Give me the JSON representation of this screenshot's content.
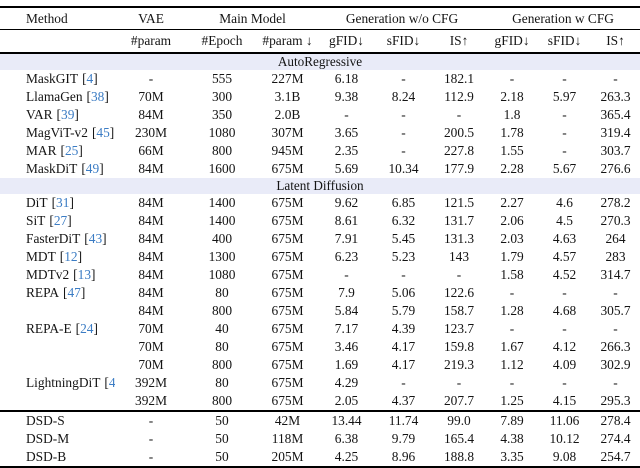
{
  "colors": {
    "citation": "#3b7cc4",
    "band_bg": "#e9ebf8"
  },
  "punctuation": {
    "open_bracket": "[",
    "close_bracket": "]"
  },
  "table": {
    "header_groups": [
      {
        "label": "Method",
        "colspan": 1
      },
      {
        "label": "VAE",
        "colspan": 1
      },
      {
        "label": "Main Model",
        "colspan": 2
      },
      {
        "label": "Generation w/o CFG",
        "colspan": 3
      },
      {
        "label": "Generation w CFG",
        "colspan": 3
      }
    ],
    "subheaders": [
      "",
      "#param",
      "#Epoch",
      "#param ↓",
      "gFID↓",
      "sFID↓",
      "IS↑",
      "gFID↓",
      "sFID↓",
      "IS↑"
    ],
    "sections": [
      {
        "label": "AutoRegressive",
        "rows": [
          {
            "method": "MaskGIT",
            "cite": "4",
            "values": [
              "-",
              "555",
              "227M",
              "6.18",
              "-",
              "182.1",
              "-",
              "-",
              "-"
            ]
          },
          {
            "method": "LlamaGen",
            "cite": "38",
            "values": [
              "70M",
              "300",
              "3.1B",
              "9.38",
              "8.24",
              "112.9",
              "2.18",
              "5.97",
              "263.3"
            ]
          },
          {
            "method": "VAR",
            "cite": "39",
            "values": [
              "84M",
              "350",
              "2.0B",
              "-",
              "-",
              "-",
              "1.8",
              "-",
              "365.4"
            ]
          },
          {
            "method": "MagViT-v2",
            "cite": "45",
            "values": [
              "230M",
              "1080",
              "307M",
              "3.65",
              "-",
              "200.5",
              "1.78",
              "-",
              "319.4"
            ]
          },
          {
            "method": "MAR",
            "cite": "25",
            "values": [
              "66M",
              "800",
              "945M",
              "2.35",
              "-",
              "227.8",
              "1.55",
              "-",
              "303.7"
            ]
          },
          {
            "method": "MaskDiT",
            "cite": "49",
            "values": [
              "84M",
              "1600",
              "675M",
              "5.69",
              "10.34",
              "177.9",
              "2.28",
              "5.67",
              "276.6"
            ]
          }
        ]
      },
      {
        "label": "Latent Diffusion",
        "rows": [
          {
            "method": "DiT",
            "cite": "31",
            "values": [
              "84M",
              "1400",
              "675M",
              "9.62",
              "6.85",
              "121.5",
              "2.27",
              "4.6",
              "278.2"
            ]
          },
          {
            "method": "SiT",
            "cite": "27",
            "values": [
              "84M",
              "1400",
              "675M",
              "8.61",
              "6.32",
              "131.7",
              "2.06",
              "4.5",
              "270.3"
            ]
          },
          {
            "method": "FasterDiT",
            "cite": "43",
            "values": [
              "84M",
              "400",
              "675M",
              "7.91",
              "5.45",
              "131.3",
              "2.03",
              "4.63",
              "264"
            ]
          },
          {
            "method": "MDT",
            "cite": "12",
            "values": [
              "84M",
              "1300",
              "675M",
              "6.23",
              "5.23",
              "143",
              "1.79",
              "4.57",
              "283"
            ]
          },
          {
            "method": "MDTv2",
            "cite": "13",
            "values": [
              "84M",
              "1080",
              "675M",
              "-",
              "-",
              "-",
              "1.58",
              "4.52",
              "314.7"
            ]
          },
          {
            "method": "REPA",
            "cite": "47",
            "values": [
              "84M",
              "80",
              "675M",
              "7.9",
              "5.06",
              "122.6",
              "-",
              "-",
              "-"
            ]
          },
          {
            "method": "",
            "cite": "",
            "values": [
              "84M",
              "800",
              "675M",
              "5.84",
              "5.79",
              "158.7",
              "1.28",
              "4.68",
              "305.7"
            ]
          },
          {
            "method": "REPA-E",
            "cite": "24",
            "values": [
              "70M",
              "40",
              "675M",
              "7.17",
              "4.39",
              "123.7",
              "-",
              "-",
              "-"
            ]
          },
          {
            "method": "",
            "cite": "",
            "values": [
              "70M",
              "80",
              "675M",
              "3.46",
              "4.17",
              "159.8",
              "1.67",
              "4.12",
              "266.3"
            ]
          },
          {
            "method": "",
            "cite": "",
            "values": [
              "70M",
              "800",
              "675M",
              "1.69",
              "4.17",
              "219.3",
              "1.12",
              "4.09",
              "302.9"
            ]
          },
          {
            "method": "LightningDiT",
            "cite": "44",
            "values": [
              "392M",
              "80",
              "675M",
              "4.29",
              "-",
              "-",
              "-",
              "-",
              "-"
            ]
          },
          {
            "method": "",
            "cite": "",
            "values": [
              "392M",
              "800",
              "675M",
              "2.05",
              "4.37",
              "207.7",
              "1.25",
              "4.15",
              "295.3"
            ]
          }
        ]
      },
      {
        "label": "",
        "divider": true,
        "rows": [
          {
            "method": "DSD-S",
            "cite": "",
            "values": [
              "-",
              "50",
              "42M",
              "13.44",
              "11.74",
              "99.0",
              "7.89",
              "11.06",
              "278.4"
            ]
          },
          {
            "method": "DSD-M",
            "cite": "",
            "values": [
              "-",
              "50",
              "118M",
              "6.38",
              "9.79",
              "165.4",
              "4.38",
              "10.12",
              "274.4"
            ]
          },
          {
            "method": "DSD-B",
            "cite": "",
            "values": [
              "-",
              "50",
              "205M",
              "4.25",
              "8.96",
              "188.8",
              "3.35",
              "9.08",
              "254.7"
            ]
          }
        ]
      }
    ]
  }
}
